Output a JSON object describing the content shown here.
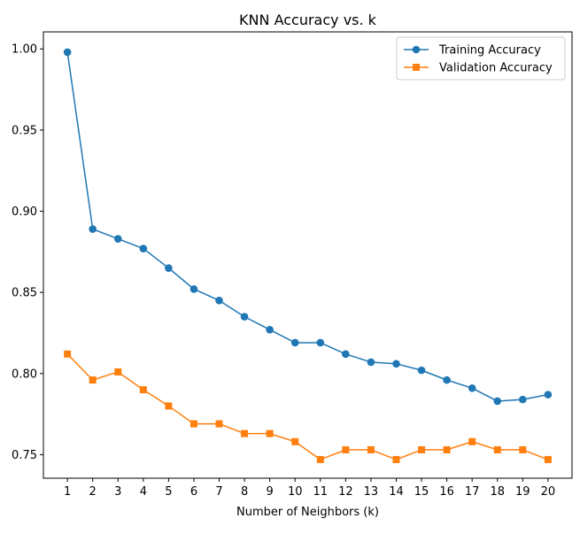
{
  "chart_data": {
    "type": "line",
    "title": "KNN Accuracy vs. k",
    "xlabel": "Number of Neighbors (k)",
    "ylabel": "",
    "x": [
      1,
      2,
      3,
      4,
      5,
      6,
      7,
      8,
      9,
      10,
      11,
      12,
      13,
      14,
      15,
      16,
      17,
      18,
      19,
      20
    ],
    "xticks": [
      "1",
      "2",
      "3",
      "4",
      "5",
      "6",
      "7",
      "8",
      "9",
      "10",
      "11",
      "12",
      "13",
      "14",
      "15",
      "16",
      "17",
      "18",
      "19",
      "20"
    ],
    "yticks": [
      "0.75",
      "0.80",
      "0.85",
      "0.90",
      "0.95",
      "1.00"
    ],
    "xlim": [
      0.05,
      20.95
    ],
    "ylim": [
      0.7355,
      1.0105
    ],
    "grid": false,
    "legend_position": "top-right",
    "series": [
      {
        "name": "Training Accuracy",
        "color": "#1f77b4",
        "marker": "circle",
        "values": [
          0.998,
          0.889,
          0.883,
          0.877,
          0.865,
          0.852,
          0.845,
          0.835,
          0.827,
          0.819,
          0.819,
          0.812,
          0.807,
          0.806,
          0.802,
          0.796,
          0.791,
          0.783,
          0.784,
          0.787
        ]
      },
      {
        "name": "Validation Accuracy",
        "color": "#ff7f0e",
        "marker": "square",
        "values": [
          0.812,
          0.796,
          0.801,
          0.79,
          0.78,
          0.769,
          0.769,
          0.763,
          0.763,
          0.758,
          0.747,
          0.753,
          0.753,
          0.747,
          0.753,
          0.753,
          0.758,
          0.753,
          0.753,
          0.747
        ]
      }
    ]
  }
}
